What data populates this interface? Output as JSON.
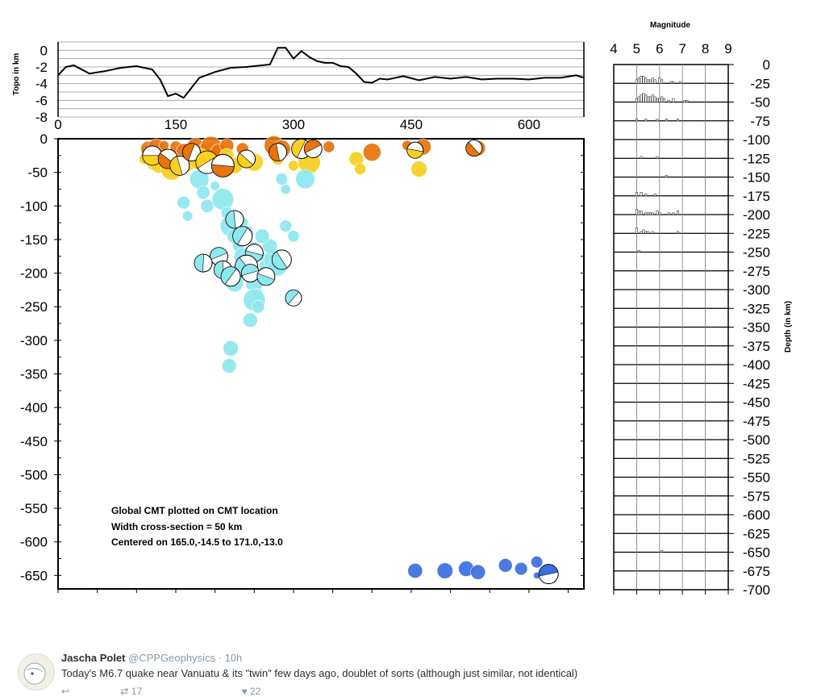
{
  "figure": {
    "topo_ylabel": "Topo in km",
    "topo_yticks": [
      "0",
      "-2",
      "-4",
      "-6",
      "-8"
    ],
    "topo_xticks": [
      "0",
      "150",
      "300",
      "450",
      "600"
    ],
    "depth_yticks": [
      "0",
      "-50",
      "-100",
      "-150",
      "-200",
      "-250",
      "-300",
      "-350",
      "-400",
      "-450",
      "-500",
      "-550",
      "-600",
      "-650"
    ],
    "hist_title": "Magnitude",
    "hist_xticks": [
      "4",
      "5",
      "6",
      "7",
      "8",
      "9"
    ],
    "hist_yticks": [
      "0",
      "-25",
      "-50",
      "-75",
      "-100",
      "-125",
      "-150",
      "-175",
      "-200",
      "-225",
      "-250",
      "-275",
      "-300",
      "-325",
      "-350",
      "-375",
      "-400",
      "-425",
      "-450",
      "-475",
      "-500",
      "-525",
      "-550",
      "-575",
      "-600",
      "-625",
      "-650",
      "-675",
      "-700"
    ],
    "depth_label": "Depth (in km)",
    "annotation": {
      "line1": "Global CMT plotted on CMT location",
      "line2": "Width cross-section = 50 km",
      "line3": "Centered on 165.0,-14.5 to 171.0,-13.0"
    },
    "colors": {
      "shallow": "#e8740c",
      "mid": "#f7d020",
      "intermediate": "#8ee8ee",
      "deep": "#3a6fe0"
    }
  },
  "chart_data": [
    {
      "type": "line",
      "title": "",
      "ylabel": "Topo in km",
      "xlabel": "",
      "xlim": [
        0,
        670
      ],
      "ylim": [
        -8,
        1
      ],
      "x": [
        0,
        10,
        20,
        40,
        60,
        80,
        100,
        120,
        130,
        140,
        150,
        160,
        170,
        180,
        200,
        220,
        240,
        260,
        270,
        280,
        290,
        300,
        310,
        320,
        330,
        340,
        350,
        360,
        370,
        380,
        390,
        400,
        410,
        420,
        440,
        460,
        480,
        500,
        520,
        540,
        560,
        580,
        600,
        620,
        640,
        660,
        670
      ],
      "y": [
        -3.0,
        -2.0,
        -1.8,
        -2.8,
        -2.5,
        -2.1,
        -1.9,
        -2.3,
        -3.5,
        -5.5,
        -5.2,
        -5.7,
        -4.5,
        -3.3,
        -2.6,
        -2.1,
        -2.0,
        -1.8,
        -1.7,
        0.3,
        0.3,
        -1.0,
        -0.1,
        -0.8,
        -1.3,
        -1.5,
        -1.5,
        -1.9,
        -2.0,
        -2.8,
        -3.8,
        -3.9,
        -3.4,
        -3.5,
        -3.1,
        -3.6,
        -3.2,
        -3.4,
        -3.2,
        -3.5,
        -3.4,
        -3.4,
        -3.5,
        -3.3,
        -3.3,
        -3.0,
        -3.3
      ]
    },
    {
      "type": "scatter",
      "title": "",
      "xlabel": "",
      "ylabel": "",
      "xlim": [
        0,
        670
      ],
      "ylim": [
        -670,
        0
      ],
      "series": [
        {
          "name": "shallow",
          "color": "#e8740c",
          "points": [
            [
              115,
              -15
            ],
            [
              125,
              -12
            ],
            [
              135,
              -10
            ],
            [
              150,
              -12
            ],
            [
              160,
              -18
            ],
            [
              175,
              -10
            ],
            [
              185,
              -14
            ],
            [
              195,
              -12
            ],
            [
              205,
              -20
            ],
            [
              215,
              -10
            ],
            [
              235,
              -15
            ],
            [
              275,
              -10
            ],
            [
              285,
              -15
            ],
            [
              305,
              -10
            ],
            [
              325,
              -18
            ],
            [
              345,
              -12
            ],
            [
              400,
              -20
            ],
            [
              445,
              -10
            ],
            [
              465,
              -12
            ],
            [
              535,
              -14
            ]
          ]
        },
        {
          "name": "mid",
          "color": "#f7d020",
          "points": [
            [
              110,
              -30
            ],
            [
              120,
              -40
            ],
            [
              130,
              -35
            ],
            [
              145,
              -45
            ],
            [
              155,
              -32
            ],
            [
              165,
              -38
            ],
            [
              180,
              -30
            ],
            [
              200,
              -35
            ],
            [
              215,
              -25
            ],
            [
              225,
              -40
            ],
            [
              250,
              -35
            ],
            [
              280,
              -30
            ],
            [
              300,
              -40
            ],
            [
              320,
              -35
            ],
            [
              380,
              -30
            ],
            [
              385,
              -45
            ],
            [
              460,
              -45
            ]
          ]
        },
        {
          "name": "intermediate",
          "color": "#8ee8ee",
          "points": [
            [
              160,
              -95
            ],
            [
              165,
              -115
            ],
            [
              180,
              -60
            ],
            [
              185,
              -80
            ],
            [
              190,
              -100
            ],
            [
              200,
              -70
            ],
            [
              210,
              -90
            ],
            [
              215,
              -110
            ],
            [
              220,
              -130
            ],
            [
              225,
              -145
            ],
            [
              230,
              -160
            ],
            [
              235,
              -175
            ],
            [
              240,
              -190
            ],
            [
              245,
              -200
            ],
            [
              250,
              -215
            ],
            [
              255,
              -230
            ],
            [
              235,
              -125
            ],
            [
              240,
              -140
            ],
            [
              250,
              -160
            ],
            [
              260,
              -175
            ],
            [
              265,
              -190
            ],
            [
              230,
              -200
            ],
            [
              225,
              -215
            ],
            [
              250,
              -240
            ],
            [
              255,
              -250
            ],
            [
              245,
              -270
            ],
            [
              220,
              -312
            ],
            [
              218,
              -338
            ],
            [
              275,
              -180
            ],
            [
              270,
              -160
            ],
            [
              260,
              -145
            ],
            [
              290,
              -130
            ],
            [
              300,
              -145
            ],
            [
              280,
              -190
            ],
            [
              290,
              -75
            ],
            [
              285,
              -60
            ],
            [
              315,
              -60
            ]
          ]
        },
        {
          "name": "deep",
          "color": "#3a6fe0",
          "points": [
            [
              455,
              -643
            ],
            [
              493,
              -643
            ],
            [
              520,
              -640
            ],
            [
              535,
              -645
            ],
            [
              570,
              -635
            ],
            [
              590,
              -640
            ],
            [
              610,
              -630
            ],
            [
              610,
              -650
            ],
            [
              625,
              -640
            ]
          ]
        }
      ]
    },
    {
      "type": "bar",
      "title": "Magnitude",
      "xlabel": "Magnitude",
      "ylabel": "Depth (in km)",
      "xlim": [
        4,
        9
      ],
      "ylim": [
        -700,
        0
      ],
      "bins": [
        {
          "depth_top": -25,
          "counts": [
            [
              5.0,
              2
            ],
            [
              5.1,
              3
            ],
            [
              5.2,
              4
            ],
            [
              5.3,
              4
            ],
            [
              5.4,
              3
            ],
            [
              5.5,
              2
            ],
            [
              5.6,
              2
            ],
            [
              5.7,
              3
            ],
            [
              5.8,
              2
            ],
            [
              6.0,
              3
            ],
            [
              6.1,
              2
            ],
            [
              6.5,
              1
            ],
            [
              6.6,
              1
            ],
            [
              6.9,
              1
            ]
          ]
        },
        {
          "depth_top": -50,
          "counts": [
            [
              5.0,
              2
            ],
            [
              5.1,
              3
            ],
            [
              5.2,
              4
            ],
            [
              5.3,
              5
            ],
            [
              5.4,
              4
            ],
            [
              5.5,
              3
            ],
            [
              5.6,
              3
            ],
            [
              5.7,
              4
            ],
            [
              5.8,
              3
            ],
            [
              5.9,
              2
            ],
            [
              6.0,
              2
            ],
            [
              6.1,
              3
            ],
            [
              6.2,
              2
            ],
            [
              6.4,
              1
            ],
            [
              6.6,
              2
            ],
            [
              7.1,
              1
            ],
            [
              7.2,
              1
            ]
          ]
        },
        {
          "depth_top": -75,
          "counts": [
            [
              5.0,
              1
            ],
            [
              5.4,
              1
            ],
            [
              5.9,
              1
            ],
            [
              6.3,
              1
            ],
            [
              6.8,
              1
            ]
          ]
        },
        {
          "depth_top": -125,
          "counts": [
            [
              5.2,
              1
            ],
            [
              5.9,
              1
            ]
          ]
        },
        {
          "depth_top": -150,
          "counts": [
            [
              6.3,
              1
            ]
          ]
        },
        {
          "depth_top": -175,
          "counts": [
            [
              5.0,
              2
            ],
            [
              5.2,
              2
            ],
            [
              5.4,
              1
            ],
            [
              5.8,
              1
            ]
          ]
        },
        {
          "depth_top": -200,
          "counts": [
            [
              5.0,
              3
            ],
            [
              5.1,
              2
            ],
            [
              5.2,
              2
            ],
            [
              5.4,
              1
            ],
            [
              5.5,
              1
            ],
            [
              5.6,
              1
            ],
            [
              5.7,
              1
            ],
            [
              5.9,
              2
            ],
            [
              6.0,
              1
            ],
            [
              6.4,
              1
            ],
            [
              6.6,
              1
            ],
            [
              6.8,
              2
            ]
          ]
        },
        {
          "depth_top": -225,
          "counts": [
            [
              5.0,
              3
            ],
            [
              5.2,
              1
            ],
            [
              5.3,
              2
            ],
            [
              5.4,
              1
            ],
            [
              5.5,
              1
            ],
            [
              5.7,
              1
            ],
            [
              6.8,
              1
            ]
          ]
        },
        {
          "depth_top": -250,
          "counts": [
            [
              5.1,
              1
            ]
          ]
        },
        {
          "depth_top": -650,
          "counts": [
            [
              6.1,
              1
            ]
          ]
        }
      ]
    }
  ],
  "tweet": {
    "name": "Jascha Polet",
    "handle": "@CPPGeophysics",
    "separator": "·",
    "time": "10h",
    "text": "Today's M6.7 quake near Vanuatu & its \"twin\" few days ago, doublet of sorts (although just similar, not identical)",
    "retweets": "17",
    "likes": "22"
  }
}
